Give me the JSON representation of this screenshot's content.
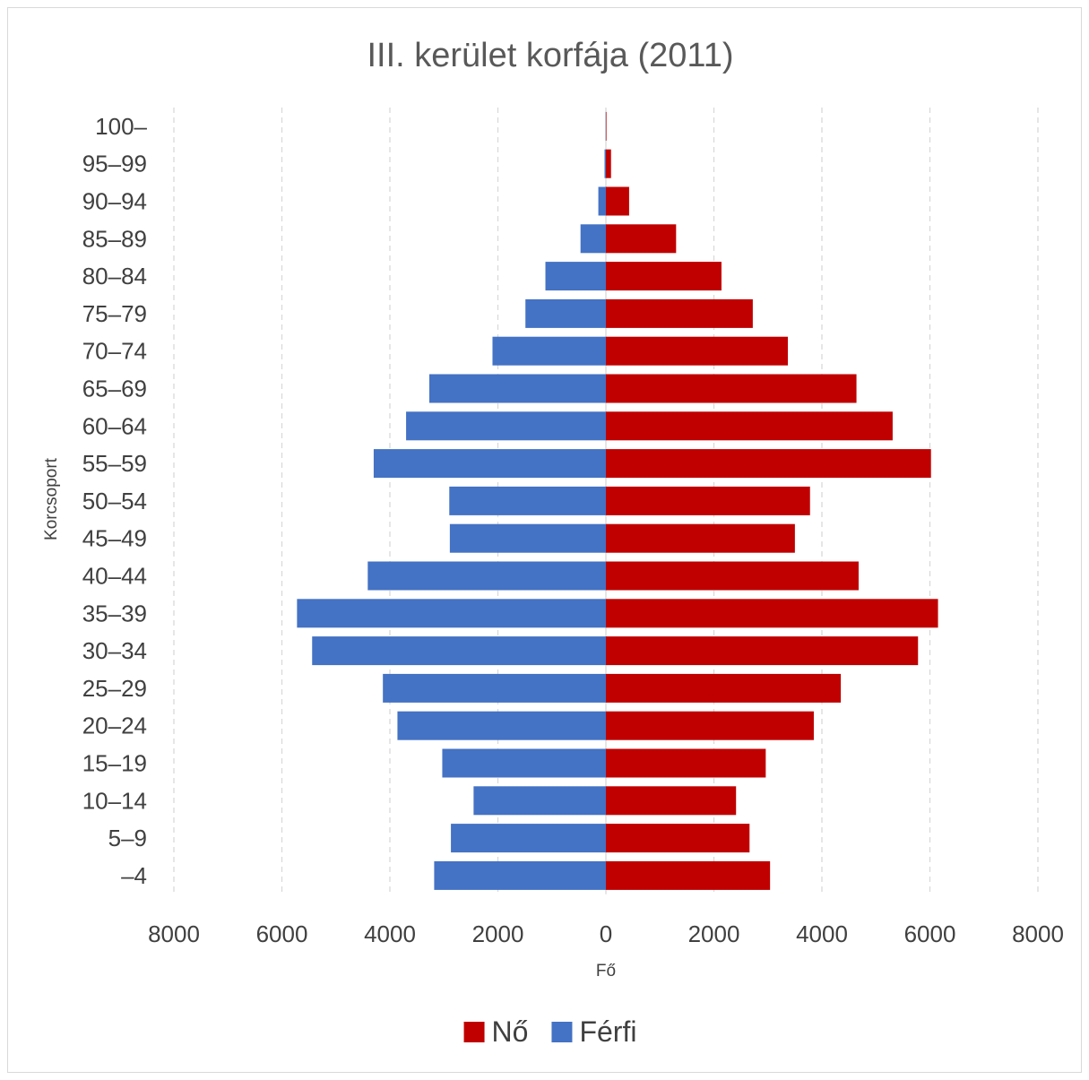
{
  "chart_data": {
    "type": "bar",
    "orientation": "horizontal",
    "title": "III. kerület korfája (2011)",
    "xlabel": "Fő",
    "ylabel": "Korcsoport",
    "categories": [
      "–4",
      "5–9",
      "10–14",
      "15–19",
      "20–24",
      "25–29",
      "30–34",
      "35–39",
      "40–44",
      "45–49",
      "50–54",
      "55–59",
      "60–64",
      "65–69",
      "70–74",
      "75–79",
      "80–84",
      "85–89",
      "90–94",
      "95–99",
      "100–"
    ],
    "series": [
      {
        "name": "Nő",
        "color": "#c00000",
        "side": "right",
        "values": [
          3040,
          2660,
          2410,
          2960,
          3850,
          4350,
          5780,
          6150,
          4680,
          3500,
          3780,
          6020,
          5310,
          4640,
          3370,
          2720,
          2140,
          1300,
          430,
          95,
          10
        ]
      },
      {
        "name": "Férfi",
        "color": "#4472c4",
        "side": "left",
        "values": [
          3180,
          2870,
          2450,
          3030,
          3860,
          4130,
          5440,
          5720,
          4410,
          2890,
          2900,
          4300,
          3700,
          3270,
          2100,
          1490,
          1120,
          470,
          140,
          25,
          5
        ]
      }
    ],
    "x_ticks": [
      "8000",
      "6000",
      "4000",
      "2000",
      "0",
      "2000",
      "4000",
      "6000",
      "8000"
    ],
    "xlim": [
      -8000,
      8000
    ],
    "grid": true,
    "legend_position": "bottom",
    "legend_order": [
      "Nő",
      "Férfi"
    ]
  }
}
